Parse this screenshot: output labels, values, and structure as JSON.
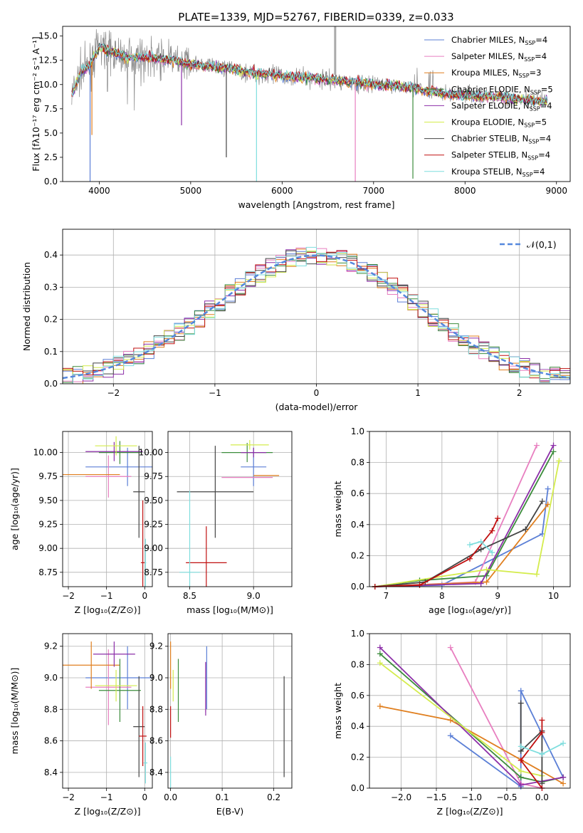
{
  "figure_title": "PLATE=1339, MJD=52767, FIBERID=0339, z=0.033",
  "models": [
    {
      "name": "Chabrier MILES",
      "nssp": 4,
      "color": "#5b7fd6"
    },
    {
      "name": "Salpeter MILES",
      "nssp": 4,
      "color": "#e87fc0"
    },
    {
      "name": "Kroupa MILES",
      "nssp": 3,
      "color": "#e07f1f"
    },
    {
      "name": "Chabrier ELODIE",
      "nssp": 5,
      "color": "#3c8c3c"
    },
    {
      "name": "Salpeter ELODIE",
      "nssp": 4,
      "color": "#8c2fa8"
    },
    {
      "name": "Kroupa ELODIE",
      "nssp": 5,
      "color": "#d4ec4c"
    },
    {
      "name": "Chabrier STELIB",
      "nssp": 4,
      "color": "#444444"
    },
    {
      "name": "Salpeter STELIB",
      "nssp": 4,
      "color": "#c01010"
    },
    {
      "name": "Kroupa STELIB",
      "nssp": 4,
      "color": "#7fdede"
    }
  ],
  "legend_suffix": "N",
  "legend_subscript": "SSP",
  "chart_data": [
    {
      "id": "spectrum",
      "type": "line",
      "xlabel": "wavelength [Angstrom, rest frame]",
      "ylabel": "Flux [fλ10⁻¹⁷ erg cm⁻² s⁻¹ A⁻¹]",
      "xlim": [
        3600,
        9150
      ],
      "ylim": [
        0,
        16
      ],
      "xticks": [
        4000,
        5000,
        6000,
        7000,
        8000,
        9000
      ],
      "yticks": [
        "0.0",
        "2.5",
        "5.0",
        "7.5",
        "10.0",
        "12.5",
        "15.0"
      ],
      "grid": false,
      "legend": "top-right",
      "data_color": "#888888",
      "model_x": [
        3700,
        3800,
        3900,
        4000,
        4100,
        4200,
        4300,
        4400,
        4500,
        4600,
        4700,
        4800,
        4900,
        5000,
        5200,
        5400,
        5600,
        5800,
        6000,
        6200,
        6400,
        6600,
        6800,
        7000,
        7200,
        7400,
        7600,
        7800,
        8000,
        8200,
        8400,
        8600,
        8800
      ],
      "model_y": [
        8.9,
        11.3,
        12.0,
        13.8,
        13.5,
        13.2,
        12.8,
        12.9,
        12.8,
        12.7,
        12.6,
        12.5,
        12.3,
        12.1,
        11.9,
        11.7,
        11.3,
        11.1,
        10.9,
        10.8,
        10.6,
        10.4,
        10.2,
        10.0,
        9.9,
        9.7,
        9.3,
        9.0,
        8.9,
        8.8,
        8.7,
        8.5,
        8.3
      ],
      "dips": [
        [
          3900,
          0
        ],
        [
          3920,
          4.8
        ],
        [
          4900,
          5.8
        ],
        [
          5390,
          2.5
        ],
        [
          5720,
          0
        ],
        [
          6800,
          0
        ],
        [
          7430,
          0.3
        ]
      ]
    },
    {
      "id": "residuals",
      "type": "histogram",
      "xlabel": "(data-model)/error",
      "ylabel": "Normed distribution",
      "xlim": [
        -2.5,
        2.5
      ],
      "ylim": [
        0,
        0.48
      ],
      "xticks": [
        "−2",
        "−1",
        "0",
        "1",
        "2"
      ],
      "yticks": [
        "0.0",
        "0.1",
        "0.2",
        "0.3",
        "0.4"
      ],
      "grid": true,
      "legend": "top-right",
      "reference_label": "𝒩(0,1)",
      "bin_width": 0.1
    },
    {
      "id": "age_vs_Z",
      "type": "errorbar",
      "xlabel": "Z [log₁₀(Z/Z⊙)]",
      "ylabel": "age  [log₁₀(age/yr)]",
      "xlim": [
        -2.15,
        0.2
      ],
      "ylim": [
        8.6,
        10.22
      ],
      "xticks": [
        "−2",
        "−1",
        "0"
      ],
      "yticks": [
        "8.75",
        "9.00",
        "9.25",
        "9.50",
        "9.75",
        "10.00"
      ],
      "points": [
        {
          "x": -0.45,
          "y": 9.85,
          "xerr": 1.1,
          "yerr": 0.2
        },
        {
          "x": -0.95,
          "y": 9.75,
          "xerr": 0.6,
          "yerr": 0.22
        },
        {
          "x": -1.4,
          "y": 9.77,
          "xerr": 0.75,
          "yerr": 0
        },
        {
          "x": -0.65,
          "y": 10.0,
          "xerr": 0.55,
          "yerr": 0.12
        },
        {
          "x": -0.8,
          "y": 10.01,
          "xerr": 0.75,
          "yerr": 0.1
        },
        {
          "x": -0.75,
          "y": 10.07,
          "xerr": 0.55,
          "yerr": 0.1
        },
        {
          "x": -0.15,
          "y": 9.59,
          "xerr": 0.15,
          "yerr": 0.48
        },
        {
          "x": -0.05,
          "y": 8.85,
          "xerr": 0.05,
          "yerr": 0.65
        },
        {
          "x": 0.02,
          "y": 8.85,
          "xerr": 0.02,
          "yerr": 0.25
        }
      ]
    },
    {
      "id": "age_vs_mass",
      "type": "errorbar",
      "xlabel": "mass [log₁₀(M/M⊙)]",
      "ylabel": "",
      "xlim": [
        8.33,
        9.3
      ],
      "ylim": [
        8.6,
        10.22
      ],
      "xticks": [
        "8.5",
        "9.0"
      ],
      "yticks": [
        "8.75",
        "9.00",
        "9.25",
        "9.50",
        "9.75",
        "10.00"
      ],
      "points": [
        {
          "x": 9.0,
          "y": 9.85,
          "xerr": 0.1,
          "yerr": 0.2
        },
        {
          "x": 8.95,
          "y": 9.74,
          "xerr": 0.2,
          "yerr": 0
        },
        {
          "x": 9.1,
          "y": 9.76,
          "xerr": 0.1,
          "yerr": 0
        },
        {
          "x": 8.95,
          "y": 10.0,
          "xerr": 0.2,
          "yerr": 0.1
        },
        {
          "x": 9.0,
          "y": 10.0,
          "xerr": 0.1,
          "yerr": 0.05
        },
        {
          "x": 8.97,
          "y": 10.08,
          "xerr": 0.15,
          "yerr": 0.05
        },
        {
          "x": 8.7,
          "y": 9.59,
          "xerr": 0.3,
          "yerr": 0.48
        },
        {
          "x": 8.63,
          "y": 8.85,
          "xerr": 0.16,
          "yerr": 0.38
        },
        {
          "x": 8.5,
          "y": 8.75,
          "xerr": 0.08,
          "yerr": 0.85
        }
      ]
    },
    {
      "id": "weight_vs_age",
      "type": "line",
      "xlabel": "age  [log₁₀(age/yr)]",
      "ylabel": "mass weight",
      "xlim": [
        6.7,
        10.3
      ],
      "ylim": [
        0,
        1
      ],
      "xticks": [
        "7",
        "8",
        "9",
        "10"
      ],
      "yticks": [
        "0.0",
        "0.2",
        "0.4",
        "0.6",
        "0.8",
        "1.0"
      ],
      "grid": true,
      "series": [
        {
          "x": [
            6.8,
            8.0,
            9.8,
            9.9
          ],
          "y": [
            0.0,
            0.01,
            0.34,
            0.63
          ]
        },
        {
          "x": [
            6.8,
            8.6,
            9.7
          ],
          "y": [
            0.0,
            0.03,
            0.91
          ]
        },
        {
          "x": [
            6.8,
            8.8,
            9.9
          ],
          "y": [
            0.0,
            0.03,
            0.53
          ]
        },
        {
          "x": [
            6.8,
            7.6,
            8.8,
            10.0
          ],
          "y": [
            0.0,
            0.04,
            0.07,
            0.87
          ]
        },
        {
          "x": [
            6.8,
            8.7,
            10.0
          ],
          "y": [
            0.0,
            0.02,
            0.91
          ]
        },
        {
          "x": [
            6.8,
            8.8,
            9.7,
            10.1
          ],
          "y": [
            0.0,
            0.11,
            0.08,
            0.81
          ]
        },
        {
          "x": [
            6.8,
            7.7,
            8.7,
            9.5,
            9.8
          ],
          "y": [
            0.0,
            0.03,
            0.24,
            0.37,
            0.55
          ]
        },
        {
          "x": [
            6.8,
            7.6,
            8.5,
            8.9,
            9.0
          ],
          "y": [
            0.0,
            0.01,
            0.18,
            0.36,
            0.44
          ]
        },
        {
          "x": [
            8.5,
            8.7,
            8.9
          ],
          "y": [
            0.27,
            0.29,
            0.22
          ]
        }
      ]
    },
    {
      "id": "mass_vs_Z",
      "type": "errorbar",
      "xlabel": "Z [log₁₀(Z/Z⊙)]",
      "ylabel": "mass [log₁₀(M/M⊙)]",
      "xlim": [
        -2.15,
        0.2
      ],
      "ylim": [
        8.3,
        9.28
      ],
      "xticks": [
        "−2",
        "−1",
        "0"
      ],
      "yticks": [
        "8.4",
        "8.6",
        "8.8",
        "9.0",
        "9.2"
      ],
      "points": [
        {
          "x": -0.45,
          "y": 9.0,
          "xerr": 1.1,
          "yerr": 0.2
        },
        {
          "x": -0.95,
          "y": 8.94,
          "xerr": 0.6,
          "yerr": 0.24
        },
        {
          "x": -1.4,
          "y": 9.08,
          "xerr": 0.75,
          "yerr": 0.15
        },
        {
          "x": -0.65,
          "y": 8.92,
          "xerr": 0.55,
          "yerr": 0.2
        },
        {
          "x": -0.8,
          "y": 9.15,
          "xerr": 0.55,
          "yerr": 0.08
        },
        {
          "x": -0.75,
          "y": 8.95,
          "xerr": 0.55,
          "yerr": 0.1
        },
        {
          "x": -0.15,
          "y": 8.69,
          "xerr": 0.15,
          "yerr": 0.32
        },
        {
          "x": -0.05,
          "y": 8.63,
          "xerr": 0.1,
          "yerr": 0.19
        },
        {
          "x": 0.02,
          "y": 8.46,
          "xerr": 0.05,
          "yerr": 0.13
        }
      ]
    },
    {
      "id": "mass_vs_EBV",
      "type": "errorbar",
      "xlabel": "E(B-V)",
      "ylabel": "",
      "xlim": [
        -0.005,
        0.235
      ],
      "ylim": [
        8.3,
        9.28
      ],
      "xticks": [
        "0.0",
        "0.1",
        "0.2"
      ],
      "yticks": [
        "8.4",
        "8.6",
        "8.8",
        "9.0",
        "9.2"
      ],
      "points": [
        {
          "x": 0.07,
          "y": 9.0,
          "xerr": 0,
          "yerr": 0.2
        },
        {
          "x": 0.068,
          "y": 8.94,
          "xerr": 0,
          "yerr": 0.16
        },
        {
          "x": 0.0,
          "y": 9.08,
          "xerr": 0,
          "yerr": 0.15
        },
        {
          "x": 0.015,
          "y": 8.92,
          "xerr": 0,
          "yerr": 0.2
        },
        {
          "x": 0.068,
          "y": 8.93,
          "xerr": 0,
          "yerr": 0.17
        },
        {
          "x": 0.005,
          "y": 8.95,
          "xerr": 0,
          "yerr": 0.1
        },
        {
          "x": 0.22,
          "y": 8.69,
          "xerr": 0,
          "yerr": 0.32
        },
        {
          "x": 0.0,
          "y": 8.72,
          "xerr": 0,
          "yerr": 0.1
        },
        {
          "x": 0.0,
          "y": 8.4,
          "xerr": 0,
          "yerr": 0.1
        }
      ]
    },
    {
      "id": "weight_vs_Z",
      "type": "line",
      "xlabel": "Z [log₁₀(Z/Z⊙)]",
      "ylabel": "mass weight",
      "xlim": [
        -2.45,
        0.4
      ],
      "ylim": [
        0,
        1
      ],
      "xticks": [
        "−2.0",
        "−1.5",
        "−1.0",
        "−0.5",
        "0.0"
      ],
      "yticks": [
        "0.0",
        "0.2",
        "0.4",
        "0.6",
        "0.8",
        "1.0"
      ],
      "grid": true,
      "series": [
        {
          "x": [
            -1.3,
            -0.3,
            -0.3,
            0.3
          ],
          "y": [
            0.34,
            0.01,
            0.63,
            0.07
          ]
        },
        {
          "x": [
            -1.3,
            -0.3,
            0.0
          ],
          "y": [
            0.91,
            0.03,
            0.0
          ]
        },
        {
          "x": [
            -2.3,
            -1.3,
            0.3
          ],
          "y": [
            0.53,
            0.44,
            0.03
          ]
        },
        {
          "x": [
            -2.3,
            -0.3,
            0.0,
            0.3
          ],
          "y": [
            0.87,
            0.07,
            0.04,
            0.07
          ]
        },
        {
          "x": [
            -2.3,
            -0.3,
            0.3
          ],
          "y": [
            0.91,
            0.02,
            0.07
          ]
        },
        {
          "x": [
            -2.3,
            -0.3,
            0.0
          ],
          "y": [
            0.81,
            0.11,
            0.08
          ]
        },
        {
          "x": [
            -0.3,
            -0.3,
            0.0,
            0.0
          ],
          "y": [
            0.55,
            0.24,
            0.37,
            0.03
          ]
        },
        {
          "x": [
            0.0,
            -0.3,
            0.0,
            0.0
          ],
          "y": [
            0.0,
            0.18,
            0.36,
            0.44
          ]
        },
        {
          "x": [
            -0.3,
            0.0,
            0.3
          ],
          "y": [
            0.27,
            0.22,
            0.29
          ]
        }
      ]
    }
  ]
}
